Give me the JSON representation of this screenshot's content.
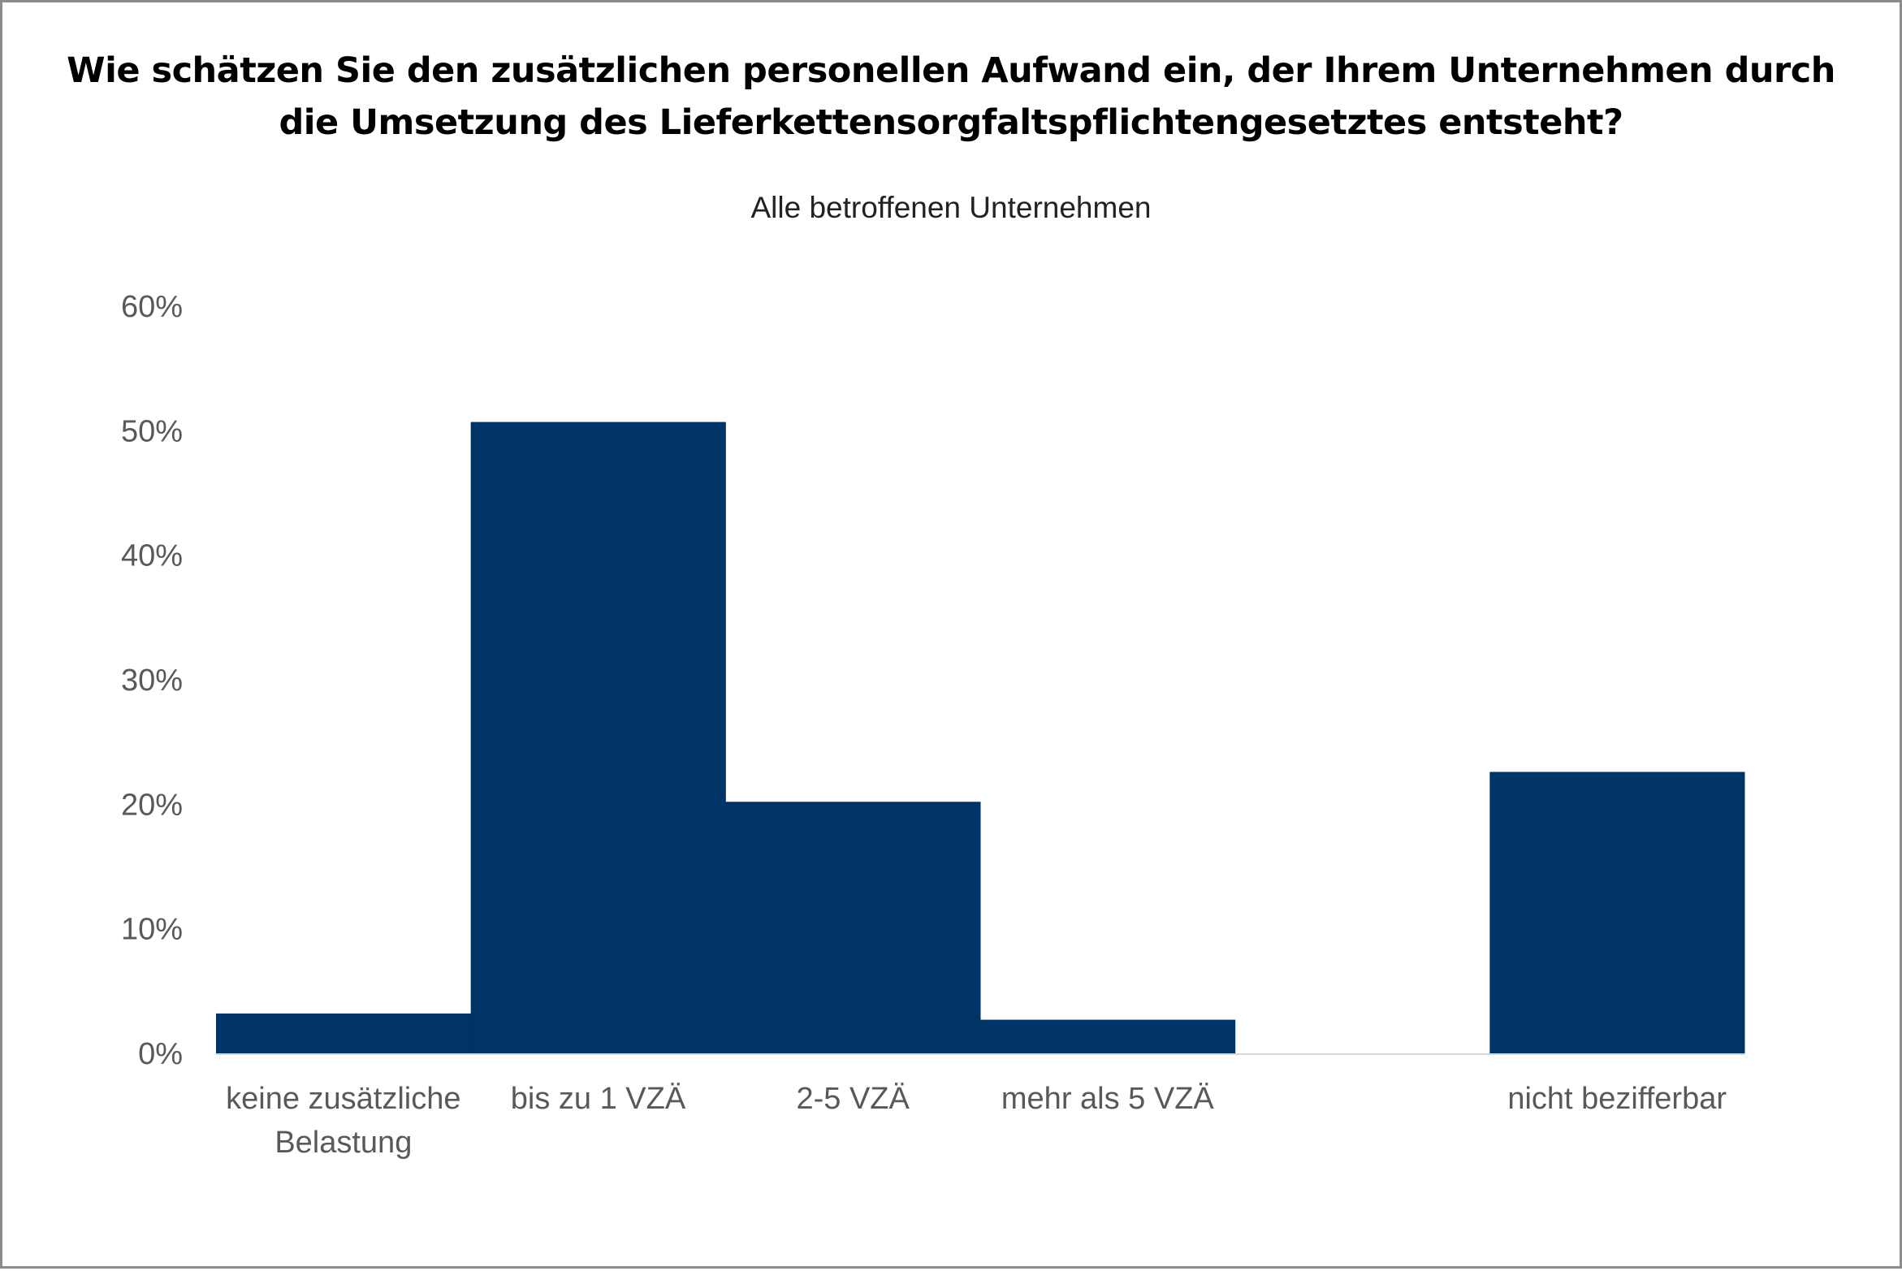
{
  "chart_data": {
    "type": "bar",
    "title": "Wie schätzen Sie den zusätzlichen personellen Aufwand ein, der Ihrem Unternehmen durch die Umsetzung des Lieferkettensorgfaltspflichtengesetztes entsteht?",
    "subtitle": "Alle betroffenen Unternehmen",
    "xlabel": "",
    "ylabel": "",
    "ylim": [
      0,
      60
    ],
    "yticks": [
      "0%",
      "10%",
      "20%",
      "30%",
      "40%",
      "50%",
      "60%"
    ],
    "grid": false,
    "bar_color": "#003366",
    "categories": [
      [
        "keine zusätzliche",
        "Belastung"
      ],
      [
        "bis zu 1 VZÄ"
      ],
      [
        "2-5 VZÄ"
      ],
      [
        "mehr als 5 VZÄ"
      ],
      [
        ""
      ],
      [
        "nicht bezifferbar"
      ]
    ],
    "values": [
      3.2,
      50.7,
      20.2,
      2.7,
      0,
      22.6
    ]
  }
}
